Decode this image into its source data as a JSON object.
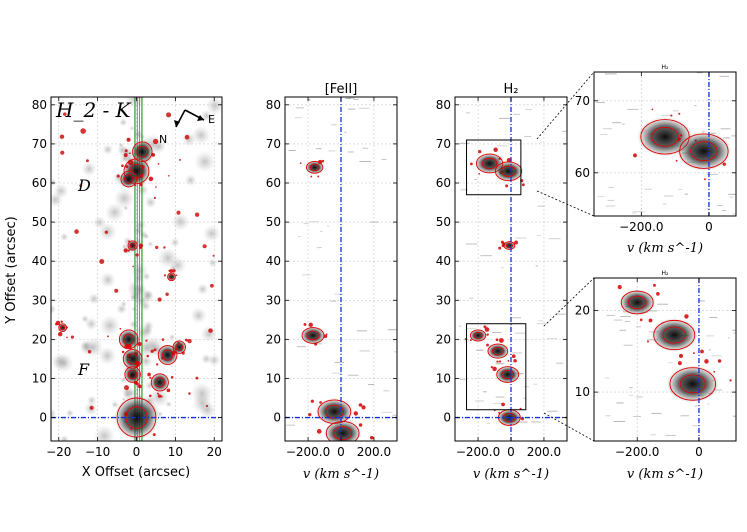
{
  "chart_data": [
    {
      "type": "heatmap",
      "panel": "image",
      "title": "",
      "label": "H_2 - K",
      "xlabel": "X Offset (arcsec)",
      "ylabel": "Y Offset (arcsec)",
      "xlim": [
        -22,
        22
      ],
      "ylim": [
        -6,
        82
      ],
      "xticks": [
        -20,
        -10,
        0,
        10,
        20
      ],
      "xtick_labels": [
        "−20",
        "−10",
        "0",
        "10",
        "20"
      ],
      "yticks": [
        0,
        10,
        20,
        30,
        40,
        50,
        60,
        70,
        80
      ],
      "ytick_labels": [
        "0",
        "10",
        "20",
        "30",
        "40",
        "50",
        "60",
        "70",
        "80"
      ],
      "annotations": [
        {
          "text": "D",
          "x": -12,
          "y": 59
        },
        {
          "text": "F",
          "x": -12,
          "y": 13
        },
        {
          "text": "N",
          "compass": true
        },
        {
          "text": "E",
          "compass": true
        }
      ],
      "emission_blobs": [
        {
          "x": 0,
          "y": 63,
          "r": 3.2
        },
        {
          "x": 1.5,
          "y": 68,
          "r": 2.5
        },
        {
          "x": -2,
          "y": 61,
          "r": 2
        },
        {
          "x": -1,
          "y": 44,
          "r": 1.2
        },
        {
          "x": -2,
          "y": 20,
          "r": 2.4
        },
        {
          "x": -1,
          "y": 15,
          "r": 2.4
        },
        {
          "x": -1,
          "y": 11,
          "r": 2
        },
        {
          "x": 8,
          "y": 16,
          "r": 2.4
        },
        {
          "x": 6,
          "y": 9,
          "r": 2.2
        },
        {
          "x": 11,
          "y": 18,
          "r": 1.6
        },
        {
          "x": 0,
          "y": 0,
          "r": 5
        },
        {
          "x": -19,
          "y": 23,
          "r": 1
        },
        {
          "x": 9,
          "y": 36,
          "r": 1
        }
      ]
    },
    {
      "type": "heatmap",
      "panel": "pv",
      "title": "[FeII]",
      "xlabel": "v (km s^-1)",
      "ylabel": "",
      "xlim": [
        -340,
        340
      ],
      "ylim": [
        -6,
        82
      ],
      "xticks": [
        -200,
        0,
        200
      ],
      "xtick_labels": [
        "−200.0",
        "0",
        "200.0"
      ],
      "yticks": [
        0,
        10,
        20,
        30,
        40,
        50,
        60,
        70,
        80
      ],
      "ytick_labels": [
        "0",
        "10",
        "20",
        "30",
        "40",
        "50",
        "60",
        "70",
        "80"
      ],
      "emission_blobs": [
        {
          "x": -40,
          "y": 1.5,
          "r": 3
        },
        {
          "x": -170,
          "y": 21,
          "r": 2
        },
        {
          "x": -160,
          "y": 64,
          "r": 1.5
        },
        {
          "x": 10,
          "y": -4,
          "r": 3
        }
      ]
    },
    {
      "type": "heatmap",
      "panel": "pv",
      "title": "H₂",
      "xlabel": "v (km s^-1)",
      "ylabel": "",
      "xlim": [
        -340,
        340
      ],
      "ylim": [
        -6,
        82
      ],
      "xticks": [
        -200,
        0,
        200
      ],
      "xtick_labels": [
        "−200.0",
        "0",
        "200.0"
      ],
      "yticks": [
        0,
        10,
        20,
        30,
        40,
        50,
        60,
        70,
        80
      ],
      "ytick_labels": [
        "0",
        "10",
        "20",
        "30",
        "40",
        "50",
        "60",
        "70",
        "80"
      ],
      "emission_blobs": [
        {
          "x": -130,
          "y": 65,
          "r": 2.4
        },
        {
          "x": -15,
          "y": 63,
          "r": 2.4
        },
        {
          "x": -10,
          "y": 44,
          "r": 1
        },
        {
          "x": -200,
          "y": 21,
          "r": 1.4
        },
        {
          "x": -80,
          "y": 17,
          "r": 1.8
        },
        {
          "x": -20,
          "y": 11,
          "r": 2
        },
        {
          "x": -10,
          "y": 0,
          "r": 2
        }
      ],
      "zoom_boxes": [
        {
          "v_range": [
            -270,
            60
          ],
          "y_range": [
            57,
            71
          ]
        },
        {
          "v_range": [
            -270,
            90
          ],
          "y_range": [
            2,
            24
          ]
        }
      ]
    },
    {
      "type": "heatmap",
      "panel": "zoom",
      "title": "H₂",
      "xlabel": "v (km s^-1)",
      "xlim": [
        -340,
        80
      ],
      "ylim": [
        54,
        74
      ],
      "xticks": [
        -200,
        0
      ],
      "xtick_labels": [
        "−200.0",
        "0"
      ],
      "yticks": [
        60,
        70
      ],
      "ytick_labels": [
        "60",
        "70"
      ],
      "emission_blobs": [
        {
          "x": -130,
          "y": 65,
          "r": 2.4
        },
        {
          "x": -15,
          "y": 63,
          "r": 2.4
        }
      ]
    },
    {
      "type": "heatmap",
      "panel": "zoom",
      "title": "H₂",
      "xlabel": "v (km s^-1)",
      "xlim": [
        -340,
        120
      ],
      "ylim": [
        4,
        24
      ],
      "xticks": [
        -200,
        0
      ],
      "xtick_labels": [
        "−200.0",
        "0"
      ],
      "yticks": [
        10,
        20
      ],
      "ytick_labels": [
        "10",
        "20"
      ],
      "emission_blobs": [
        {
          "x": -200,
          "y": 21,
          "r": 1.4
        },
        {
          "x": -80,
          "y": 17,
          "r": 1.8
        },
        {
          "x": -20,
          "y": 11,
          "r": 2
        }
      ]
    }
  ]
}
